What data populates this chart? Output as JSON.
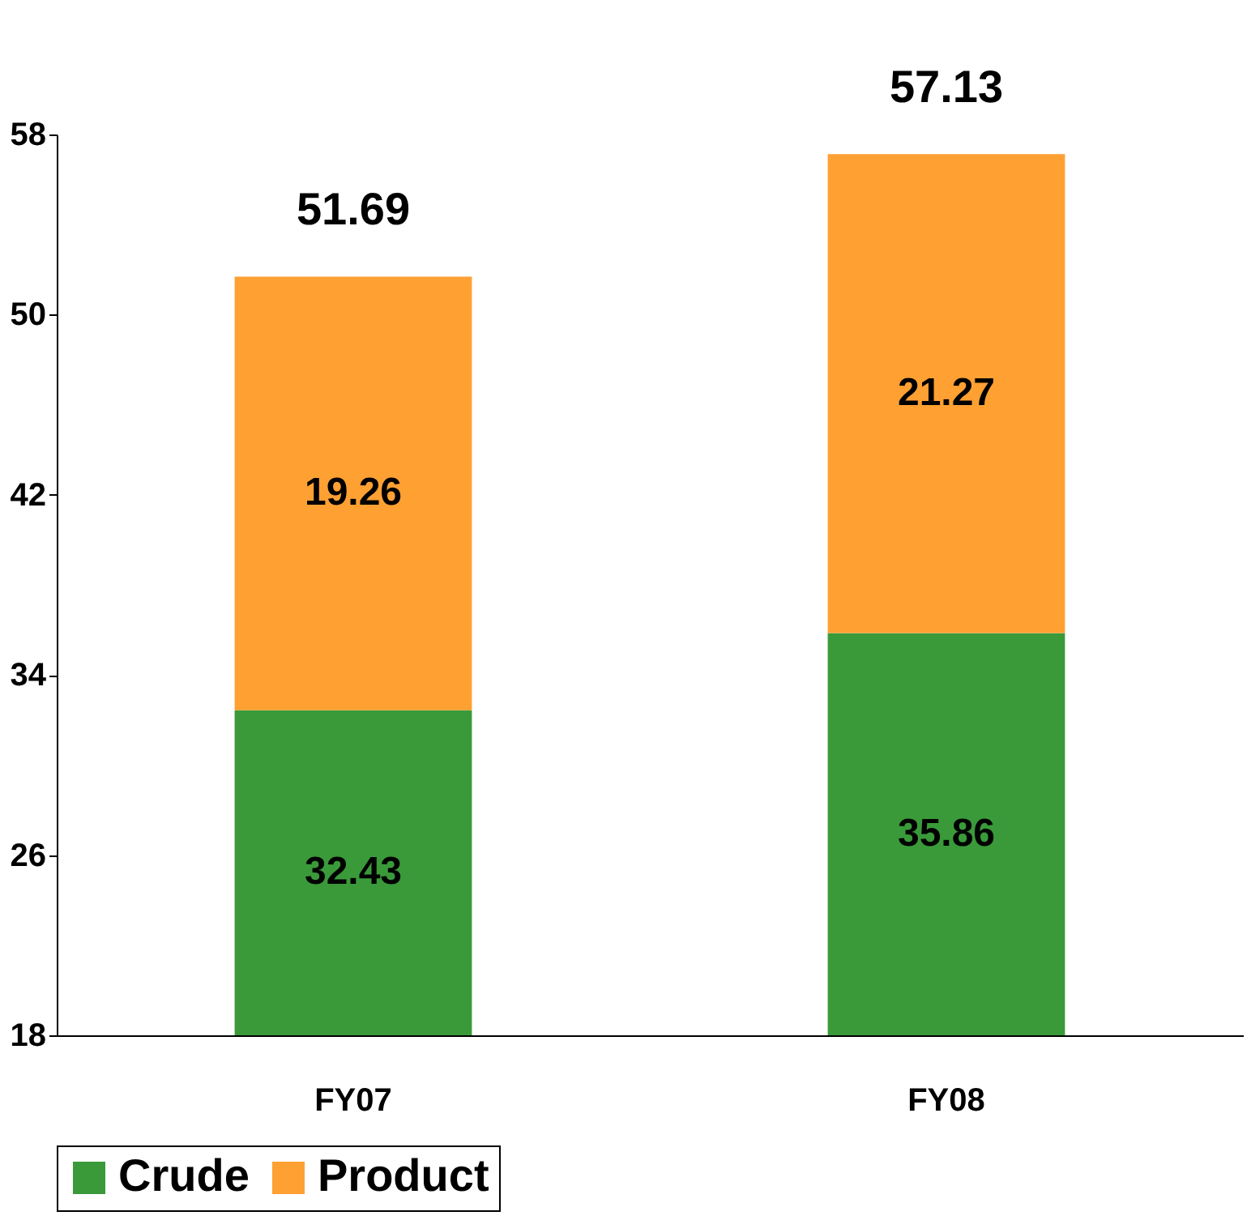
{
  "chart_data": {
    "type": "bar",
    "stacked": true,
    "categories": [
      "FY07",
      "FY08"
    ],
    "series": [
      {
        "name": "Crude",
        "color": "#3a9a3a",
        "values": [
          32.43,
          35.86
        ]
      },
      {
        "name": "Product",
        "color": "#ffa033",
        "values": [
          19.26,
          21.27
        ]
      }
    ],
    "ylim": [
      18,
      58
    ],
    "yticks": [
      18,
      26,
      34,
      42,
      50,
      58
    ],
    "grid": false,
    "legend": "bottom",
    "data_labels": true,
    "totals": [
      "51.69",
      "57.13"
    ]
  }
}
